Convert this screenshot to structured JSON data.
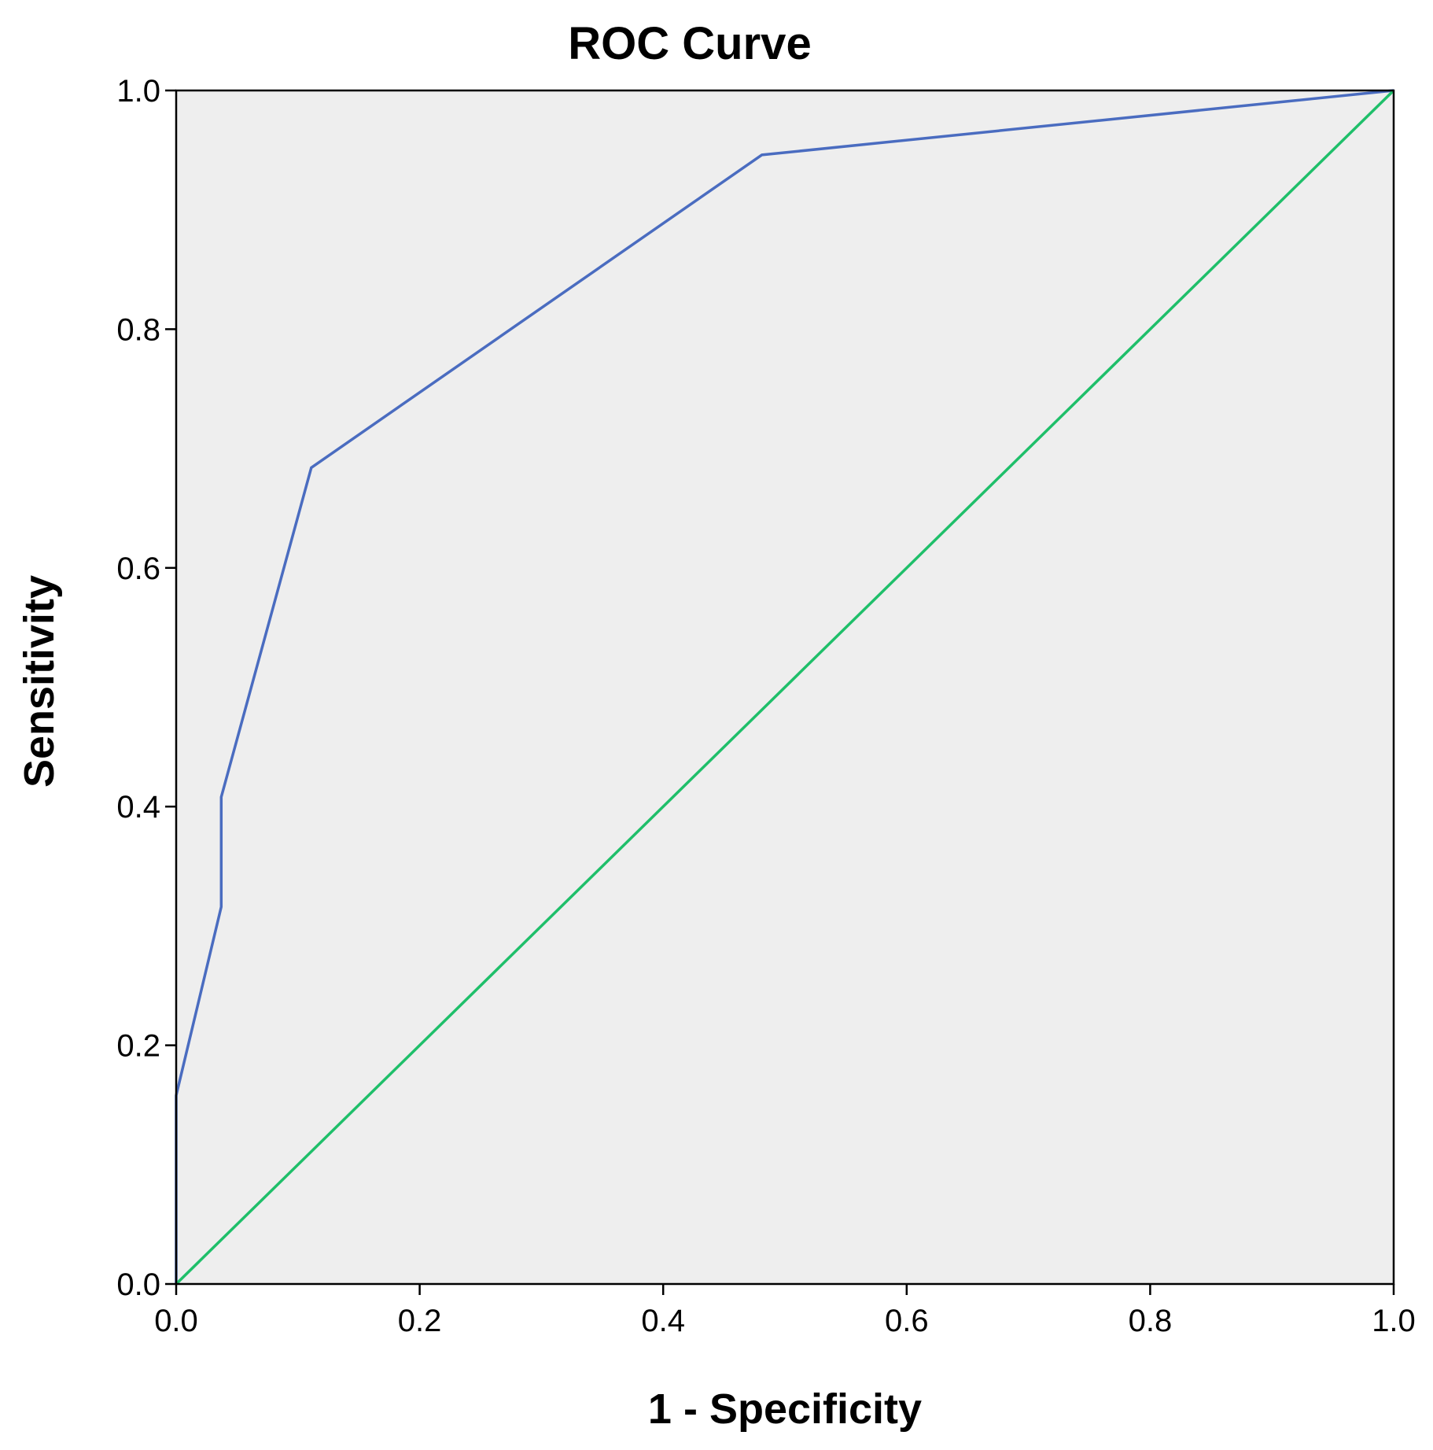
{
  "chart_data": {
    "type": "line",
    "title": "ROC Curve",
    "xlabel": "1 - Specificity",
    "ylabel": "Sensitivity",
    "xlim": [
      0,
      1
    ],
    "ylim": [
      0,
      1
    ],
    "xticks": [
      "0.0",
      "0.2",
      "0.4",
      "0.6",
      "0.8",
      "1.0"
    ],
    "yticks": [
      "0.0",
      "0.2",
      "0.4",
      "0.6",
      "0.8",
      "1.0"
    ],
    "grid": false,
    "plot_background": "#eeeeee",
    "series": [
      {
        "color": "#4a6cc0",
        "x": [
          0,
          0,
          0.037,
          0.037,
          0.111,
          0.481,
          1.0
        ],
        "y": [
          0,
          0.158,
          0.316,
          0.408,
          0.684,
          0.946,
          1.0
        ]
      },
      {
        "color": "#1fbf6a",
        "x": [
          0,
          1
        ],
        "y": [
          0,
          1
        ]
      }
    ]
  }
}
